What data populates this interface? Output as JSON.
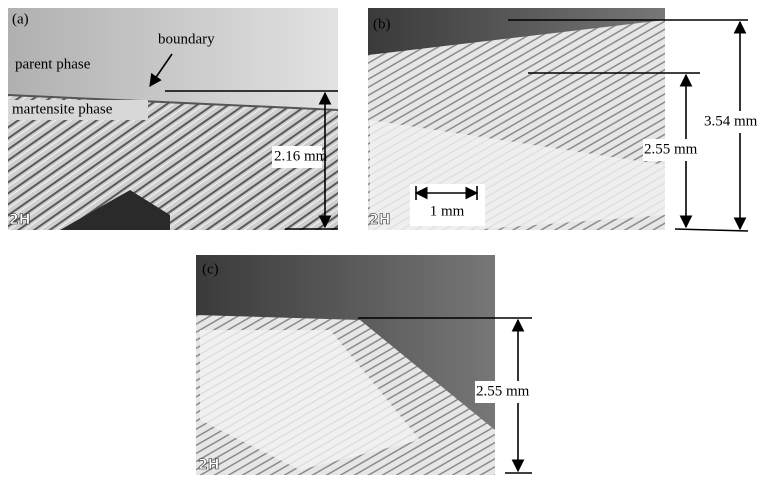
{
  "panels": [
    {
      "label": "(a)",
      "parent": "parent phase",
      "boundary": "boundary",
      "martensite": "martensite phase",
      "length": "2.16 mm",
      "stamp": "2H"
    },
    {
      "label": "(b)",
      "scale": "1 mm",
      "length_inner": "2.55 mm",
      "length_outer": "3.54 mm",
      "stamp": "2H"
    },
    {
      "label": "(c)",
      "length": "2.55 mm",
      "stamp": "2H"
    }
  ]
}
